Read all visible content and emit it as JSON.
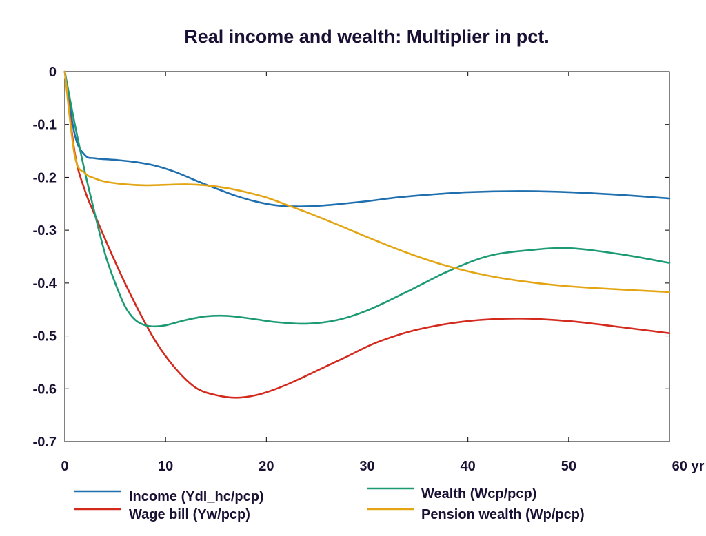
{
  "chart_data": {
    "type": "line",
    "title": "Real income and wealth: Multiplier in pct.",
    "xlabel": "",
    "ylabel": "",
    "xlim": [
      0,
      60
    ],
    "ylim": [
      -0.7,
      0
    ],
    "x_ticks": [
      0,
      10,
      20,
      30,
      40,
      50,
      60
    ],
    "x_tick_labels": [
      "0",
      "10",
      "20",
      "30",
      "40",
      "50",
      "60 yr"
    ],
    "y_ticks": [
      0,
      -0.1,
      -0.2,
      -0.3,
      -0.4,
      -0.5,
      -0.6,
      -0.7
    ],
    "y_tick_labels": [
      "0",
      "-0.1",
      "-0.2",
      "-0.3",
      "-0.4",
      "-0.5",
      "-0.6",
      "-0.7"
    ],
    "grid": false,
    "legend_position": "bottom",
    "series": [
      {
        "name": "Income (Ydl_hc/pcp)",
        "color": "#1f6fae",
        "x": [
          0,
          1,
          2,
          3,
          5,
          7,
          9,
          11,
          13,
          15,
          17,
          19,
          21,
          23,
          25,
          27,
          30,
          33,
          36,
          40,
          45,
          50,
          55,
          60
        ],
        "y": [
          0,
          -0.12,
          -0.158,
          -0.164,
          -0.167,
          -0.171,
          -0.178,
          -0.19,
          -0.206,
          -0.221,
          -0.235,
          -0.246,
          -0.253,
          -0.255,
          -0.254,
          -0.251,
          -0.245,
          -0.238,
          -0.233,
          -0.228,
          -0.226,
          -0.228,
          -0.233,
          -0.24
        ]
      },
      {
        "name": "Wage bill (Yw/pcp)",
        "color": "#d42a1e",
        "x": [
          0,
          1,
          2,
          3,
          5,
          7,
          9,
          11,
          13,
          15,
          17,
          19,
          21,
          23,
          25,
          28,
          31,
          35,
          40,
          45,
          50,
          55,
          60
        ],
        "y": [
          0,
          -0.155,
          -0.225,
          -0.272,
          -0.36,
          -0.44,
          -0.51,
          -0.562,
          -0.598,
          -0.612,
          -0.617,
          -0.612,
          -0.6,
          -0.584,
          -0.566,
          -0.539,
          -0.512,
          -0.488,
          -0.472,
          -0.467,
          -0.472,
          -0.483,
          -0.495
        ]
      },
      {
        "name": "Wealth (Wcp/pcp)",
        "color": "#1c9a73",
        "x": [
          0,
          1,
          2,
          3,
          4,
          5,
          6,
          7,
          8,
          9,
          10,
          12,
          14,
          16,
          18,
          21,
          24,
          27,
          30,
          34,
          38,
          42,
          46,
          50,
          55,
          60
        ],
        "y": [
          0,
          -0.1,
          -0.19,
          -0.27,
          -0.345,
          -0.4,
          -0.445,
          -0.47,
          -0.48,
          -0.482,
          -0.48,
          -0.47,
          -0.463,
          -0.462,
          -0.466,
          -0.474,
          -0.477,
          -0.47,
          -0.452,
          -0.416,
          -0.378,
          -0.349,
          -0.338,
          -0.334,
          -0.345,
          -0.362
        ]
      },
      {
        "name": "Pension wealth (Wp/pcp)",
        "color": "#e3a514",
        "x": [
          0,
          1,
          2,
          3,
          4,
          6,
          8,
          10,
          12,
          14,
          16,
          18,
          20,
          22,
          24,
          27,
          30,
          34,
          38,
          42,
          46,
          50,
          55,
          60
        ],
        "y": [
          0,
          -0.16,
          -0.192,
          -0.202,
          -0.208,
          -0.213,
          -0.215,
          -0.214,
          -0.213,
          -0.215,
          -0.22,
          -0.228,
          -0.238,
          -0.252,
          -0.266,
          -0.289,
          -0.313,
          -0.343,
          -0.368,
          -0.386,
          -0.398,
          -0.406,
          -0.412,
          -0.417
        ]
      }
    ]
  }
}
